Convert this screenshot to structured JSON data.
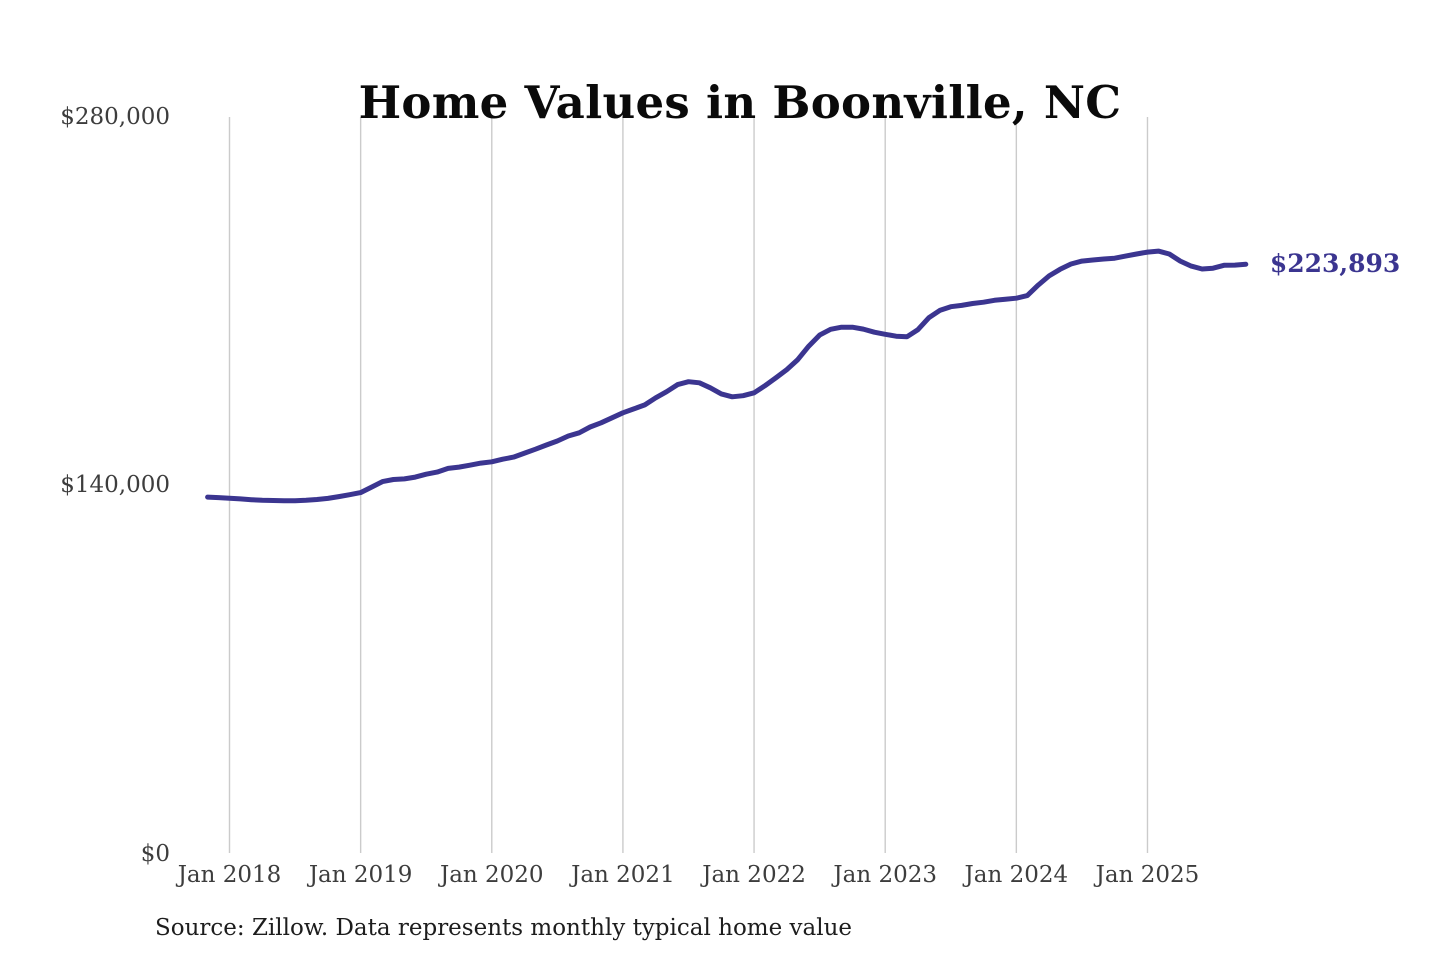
{
  "colors": {
    "background": "#ffffff",
    "line": "#3b3590",
    "gridline": "#cbcbcb",
    "title_text": "#0a0a0a",
    "tick_text": "#3d3d3d",
    "source_text": "#1d1d1d"
  },
  "chart_data": {
    "type": "line",
    "title": "Home Values in Boonville, NC",
    "source": "Source: Zillow. Data represents monthly typical home value",
    "series_name": "Monthly typical home value",
    "latest_label": "$223,893",
    "latest_value": 223893,
    "ylim": [
      0,
      280000
    ],
    "grid": "vertical-only",
    "legend": "none",
    "y_ticks": [
      {
        "label": "$0",
        "value": 0
      },
      {
        "label": "$140,000",
        "value": 140000
      },
      {
        "label": "$280,000",
        "value": 280000
      }
    ],
    "x_tick_labels": [
      "Jan 2018",
      "Jan 2019",
      "Jan 2020",
      "Jan 2021",
      "Jan 2022",
      "Jan 2023",
      "Jan 2024",
      "Jan 2025"
    ],
    "x": [
      "Nov 2017",
      "Dec 2017",
      "Jan 2018",
      "Feb 2018",
      "Mar 2018",
      "Apr 2018",
      "May 2018",
      "Jun 2018",
      "Jul 2018",
      "Aug 2018",
      "Sep 2018",
      "Oct 2018",
      "Nov 2018",
      "Dec 2018",
      "Jan 2019",
      "Feb 2019",
      "Mar 2019",
      "Apr 2019",
      "May 2019",
      "Jun 2019",
      "Jul 2019",
      "Aug 2019",
      "Sep 2019",
      "Oct 2019",
      "Nov 2019",
      "Dec 2019",
      "Jan 2020",
      "Feb 2020",
      "Mar 2020",
      "Apr 2020",
      "May 2020",
      "Jun 2020",
      "Jul 2020",
      "Aug 2020",
      "Sep 2020",
      "Oct 2020",
      "Nov 2020",
      "Dec 2020",
      "Jan 2021",
      "Feb 2021",
      "Mar 2021",
      "Apr 2021",
      "May 2021",
      "Jun 2021",
      "Jul 2021",
      "Aug 2021",
      "Sep 2021",
      "Oct 2021",
      "Nov 2021",
      "Dec 2021",
      "Jan 2022",
      "Feb 2022",
      "Mar 2022",
      "Apr 2022",
      "May 2022",
      "Jun 2022",
      "Jul 2022",
      "Aug 2022",
      "Sep 2022",
      "Oct 2022",
      "Nov 2022",
      "Dec 2022",
      "Jan 2023",
      "Feb 2023",
      "Mar 2023",
      "Apr 2023",
      "May 2023",
      "Jun 2023",
      "Jul 2023",
      "Aug 2023",
      "Sep 2023",
      "Oct 2023",
      "Nov 2023",
      "Dec 2023",
      "Jan 2024",
      "Feb 2024",
      "Mar 2024",
      "Apr 2024",
      "May 2024",
      "Jun 2024",
      "Jul 2024",
      "Aug 2024",
      "Sep 2024",
      "Oct 2024",
      "Nov 2024",
      "Dec 2024",
      "Jan 2025",
      "Feb 2025",
      "Mar 2025",
      "Apr 2025",
      "May 2025",
      "Jun 2025",
      "Jul 2025",
      "Aug 2025",
      "Sep 2025",
      "Oct 2025"
    ],
    "values": [
      135500,
      135300,
      135100,
      134800,
      134500,
      134300,
      134200,
      134100,
      134100,
      134300,
      134600,
      135000,
      135700,
      136400,
      137200,
      139300,
      141400,
      142200,
      142400,
      143100,
      144200,
      145000,
      146400,
      146900,
      147600,
      148400,
      148900,
      149900,
      150700,
      152200,
      153700,
      155300,
      156800,
      158700,
      159900,
      162100,
      163700,
      165600,
      167500,
      169000,
      170500,
      173200,
      175500,
      178200,
      179300,
      178900,
      177000,
      174700,
      173600,
      174000,
      175100,
      177800,
      180800,
      183900,
      187700,
      192800,
      197000,
      199200,
      200000,
      200000,
      199300,
      198100,
      197300,
      196600,
      196400,
      199100,
      203600,
      206400,
      207800,
      208300,
      209000,
      209500,
      210200,
      210600,
      211000,
      212000,
      216000,
      219500,
      222000,
      224000,
      225100,
      225500,
      225900,
      226200,
      227000,
      227800,
      228500,
      228900,
      227800,
      225100,
      223200,
      222100,
      222400,
      223500,
      223600,
      223893
    ]
  }
}
